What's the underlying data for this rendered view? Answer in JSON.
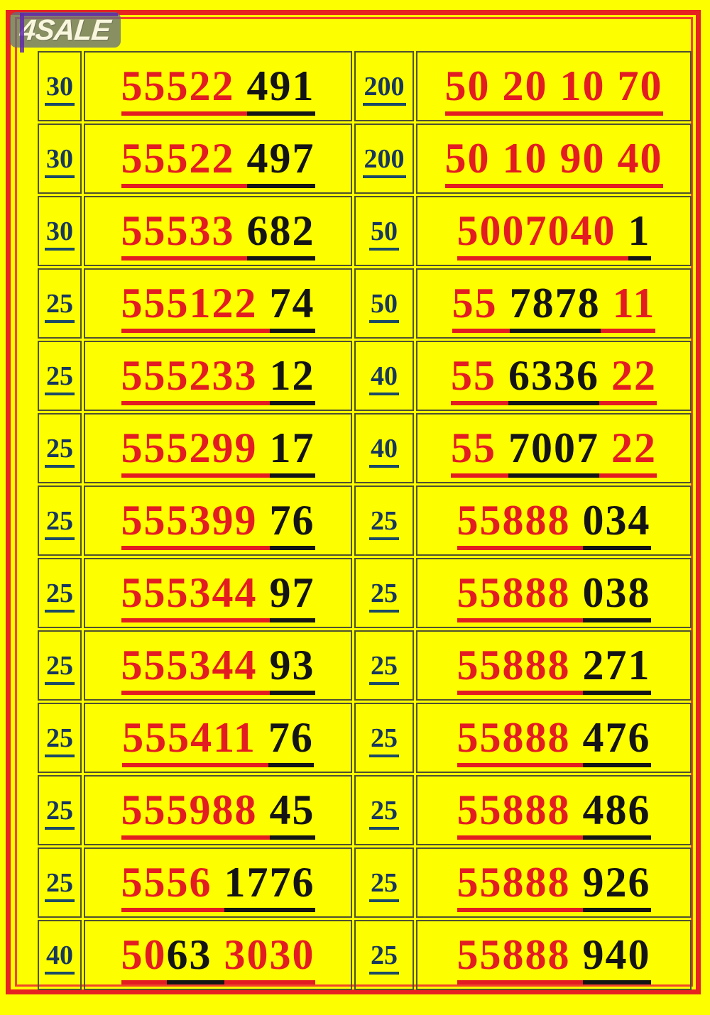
{
  "page": {
    "background": "#FDFF00",
    "frame_outer_color": "#E62320",
    "frame_inner_color": "#F04528",
    "grid_line_color": "#4F5130"
  },
  "logo": {
    "text": "4SALE"
  },
  "colors": {
    "red": "#E31C22",
    "black": "#141414",
    "price": "#17375E",
    "price_underline": "#1B4A66"
  },
  "listings": [
    {
      "left": {
        "price": "30",
        "segments": [
          {
            "text": "55522 ",
            "color": "red"
          },
          {
            "text": "491",
            "color": "black"
          }
        ]
      },
      "right": {
        "price": "200",
        "segments": [
          {
            "text": "50 20 10 70",
            "color": "red"
          }
        ]
      }
    },
    {
      "left": {
        "price": "30",
        "segments": [
          {
            "text": "55522 ",
            "color": "red"
          },
          {
            "text": "497",
            "color": "black"
          }
        ]
      },
      "right": {
        "price": "200",
        "segments": [
          {
            "text": "50 10 90 40",
            "color": "red"
          }
        ]
      }
    },
    {
      "left": {
        "price": "30",
        "segments": [
          {
            "text": "55533 ",
            "color": "red"
          },
          {
            "text": "682",
            "color": "black"
          }
        ]
      },
      "right": {
        "price": "50",
        "segments": [
          {
            "text": "5007040 ",
            "color": "red"
          },
          {
            "text": "1",
            "color": "black"
          }
        ]
      }
    },
    {
      "left": {
        "price": "25",
        "segments": [
          {
            "text": "555122 ",
            "color": "red"
          },
          {
            "text": "74",
            "color": "black"
          }
        ]
      },
      "right": {
        "price": "50",
        "segments": [
          {
            "text": "55 ",
            "color": "red"
          },
          {
            "text": "7878",
            "color": "black"
          },
          {
            "text": " 11",
            "color": "red"
          }
        ]
      }
    },
    {
      "left": {
        "price": "25",
        "segments": [
          {
            "text": "555233 ",
            "color": "red"
          },
          {
            "text": "12",
            "color": "black"
          }
        ]
      },
      "right": {
        "price": "40",
        "segments": [
          {
            "text": "55 ",
            "color": "red"
          },
          {
            "text": "6336",
            "color": "black"
          },
          {
            "text": " 22",
            "color": "red"
          }
        ]
      }
    },
    {
      "left": {
        "price": "25",
        "segments": [
          {
            "text": "555299 ",
            "color": "red"
          },
          {
            "text": "17",
            "color": "black"
          }
        ]
      },
      "right": {
        "price": "40",
        "segments": [
          {
            "text": "55 ",
            "color": "red"
          },
          {
            "text": "7007",
            "color": "black"
          },
          {
            "text": " 22",
            "color": "red"
          }
        ]
      }
    },
    {
      "left": {
        "price": "25",
        "segments": [
          {
            "text": "555399 ",
            "color": "red"
          },
          {
            "text": "76",
            "color": "black"
          }
        ]
      },
      "right": {
        "price": "25",
        "segments": [
          {
            "text": "55888 ",
            "color": "red"
          },
          {
            "text": "034",
            "color": "black"
          }
        ]
      }
    },
    {
      "left": {
        "price": "25",
        "segments": [
          {
            "text": "555344 ",
            "color": "red"
          },
          {
            "text": "97",
            "color": "black"
          }
        ]
      },
      "right": {
        "price": "25",
        "segments": [
          {
            "text": "55888 ",
            "color": "red"
          },
          {
            "text": "038",
            "color": "black"
          }
        ]
      }
    },
    {
      "left": {
        "price": "25",
        "segments": [
          {
            "text": "555344 ",
            "color": "red"
          },
          {
            "text": "93",
            "color": "black"
          }
        ]
      },
      "right": {
        "price": "25",
        "segments": [
          {
            "text": "55888 ",
            "color": "red"
          },
          {
            "text": "271",
            "color": "black"
          }
        ]
      }
    },
    {
      "left": {
        "price": "25",
        "segments": [
          {
            "text": "555411 ",
            "color": "red"
          },
          {
            "text": "76",
            "color": "black"
          }
        ]
      },
      "right": {
        "price": "25",
        "segments": [
          {
            "text": "55888 ",
            "color": "red"
          },
          {
            "text": "476",
            "color": "black"
          }
        ]
      }
    },
    {
      "left": {
        "price": "25",
        "segments": [
          {
            "text": "555988 ",
            "color": "red"
          },
          {
            "text": "45",
            "color": "black"
          }
        ]
      },
      "right": {
        "price": "25",
        "segments": [
          {
            "text": "55888 ",
            "color": "red"
          },
          {
            "text": "486",
            "color": "black"
          }
        ]
      }
    },
    {
      "left": {
        "price": "25",
        "segments": [
          {
            "text": "5556 ",
            "color": "red"
          },
          {
            "text": "1776",
            "color": "black"
          }
        ]
      },
      "right": {
        "price": "25",
        "segments": [
          {
            "text": "55888 ",
            "color": "red"
          },
          {
            "text": "926",
            "color": "black"
          }
        ]
      }
    },
    {
      "left": {
        "price": "40",
        "segments": [
          {
            "text": "50",
            "color": "red"
          },
          {
            "text": "63 ",
            "color": "black"
          },
          {
            "text": "3030",
            "color": "red"
          }
        ]
      },
      "right": {
        "price": "25",
        "segments": [
          {
            "text": "55888 ",
            "color": "red"
          },
          {
            "text": "940",
            "color": "black"
          }
        ]
      }
    }
  ]
}
